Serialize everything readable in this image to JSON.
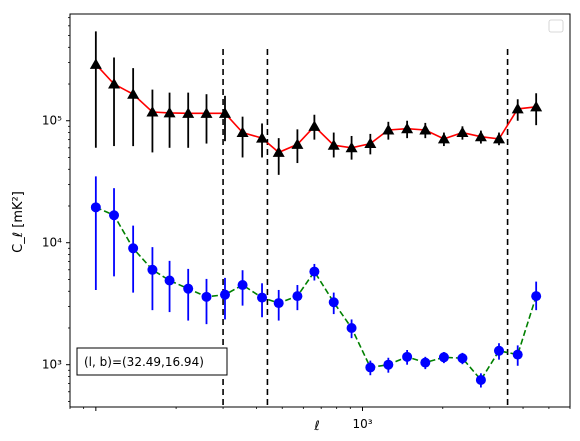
{
  "chart_data": {
    "type": "scatter",
    "xlabel": "ℓ",
    "ylabel": "C_ℓ  [mK²]",
    "x_scale": "log",
    "y_scale": "log",
    "xlim": [
      80,
      6000
    ],
    "ylim": [
      450,
      750000
    ],
    "x_major_ticks": [
      {
        "value": 1000,
        "label": "10³"
      }
    ],
    "y_major_ticks": [
      {
        "value": 1000,
        "label": "10³"
      },
      {
        "value": 10000,
        "label": "10⁴"
      },
      {
        "value": 100000,
        "label": "10⁵"
      }
    ],
    "grid": false,
    "legend": {
      "placement": "top-right",
      "entries": []
    },
    "annotation": "(l, b)=(32.49,16.94)",
    "vlines": [
      300,
      440,
      3500
    ],
    "series": [
      {
        "marker": "triangle",
        "line_style": "solid",
        "line_color": "#ff0000",
        "marker_color": "#000000",
        "errorbar_color": "#000000",
        "points": [
          {
            "x": 100,
            "y": 290000,
            "lo": 60000,
            "hi": 540000
          },
          {
            "x": 117,
            "y": 200000,
            "lo": 62000,
            "hi": 330000
          },
          {
            "x": 138,
            "y": 165000,
            "lo": 62000,
            "hi": 270000
          },
          {
            "x": 163,
            "y": 118000,
            "lo": 55000,
            "hi": 180000
          },
          {
            "x": 189,
            "y": 116000,
            "lo": 60000,
            "hi": 170000
          },
          {
            "x": 222,
            "y": 115000,
            "lo": 60000,
            "hi": 170000
          },
          {
            "x": 260,
            "y": 115000,
            "lo": 65000,
            "hi": 165000
          },
          {
            "x": 305,
            "y": 115000,
            "lo": 68000,
            "hi": 160000
          },
          {
            "x": 355,
            "y": 80000,
            "lo": 50000,
            "hi": 108000
          },
          {
            "x": 420,
            "y": 72000,
            "lo": 50000,
            "hi": 95000
          },
          {
            "x": 485,
            "y": 55000,
            "lo": 36000,
            "hi": 72000
          },
          {
            "x": 570,
            "y": 64000,
            "lo": 45000,
            "hi": 85000
          },
          {
            "x": 660,
            "y": 90000,
            "lo": 70000,
            "hi": 112000
          },
          {
            "x": 780,
            "y": 63000,
            "lo": 50000,
            "hi": 80000
          },
          {
            "x": 910,
            "y": 60000,
            "lo": 48000,
            "hi": 75000
          },
          {
            "x": 1070,
            "y": 65000,
            "lo": 53000,
            "hi": 78000
          },
          {
            "x": 1250,
            "y": 84000,
            "lo": 70000,
            "hi": 98000
          },
          {
            "x": 1470,
            "y": 86000,
            "lo": 72000,
            "hi": 100000
          },
          {
            "x": 1720,
            "y": 84000,
            "lo": 72000,
            "hi": 96000
          },
          {
            "x": 2020,
            "y": 71000,
            "lo": 62000,
            "hi": 80000
          },
          {
            "x": 2370,
            "y": 80000,
            "lo": 70000,
            "hi": 90000
          },
          {
            "x": 2780,
            "y": 74000,
            "lo": 65000,
            "hi": 83000
          },
          {
            "x": 3250,
            "y": 71000,
            "lo": 63000,
            "hi": 80000
          },
          {
            "x": 3820,
            "y": 125000,
            "lo": 100000,
            "hi": 150000
          },
          {
            "x": 4480,
            "y": 130000,
            "lo": 92000,
            "hi": 168000
          }
        ]
      },
      {
        "marker": "circle",
        "line_style": "dashed",
        "line_color": "#008000",
        "marker_color": "#0000ff",
        "errorbar_color": "#0000ff",
        "points": [
          {
            "x": 100,
            "y": 19500,
            "lo": 4100,
            "hi": 35000
          },
          {
            "x": 117,
            "y": 16800,
            "lo": 5300,
            "hi": 28000
          },
          {
            "x": 138,
            "y": 9000,
            "lo": 3900,
            "hi": 13800
          },
          {
            "x": 163,
            "y": 6000,
            "lo": 2800,
            "hi": 9200
          },
          {
            "x": 189,
            "y": 4900,
            "lo": 2700,
            "hi": 7100
          },
          {
            "x": 222,
            "y": 4200,
            "lo": 2300,
            "hi": 6100
          },
          {
            "x": 260,
            "y": 3600,
            "lo": 2150,
            "hi": 5050
          },
          {
            "x": 305,
            "y": 3750,
            "lo": 2350,
            "hi": 5150
          },
          {
            "x": 355,
            "y": 4500,
            "lo": 3050,
            "hi": 5950
          },
          {
            "x": 420,
            "y": 3550,
            "lo": 2450,
            "hi": 4650
          },
          {
            "x": 485,
            "y": 3200,
            "lo": 2300,
            "hi": 4100
          },
          {
            "x": 570,
            "y": 3650,
            "lo": 2800,
            "hi": 4500
          },
          {
            "x": 660,
            "y": 5800,
            "lo": 4900,
            "hi": 6700
          },
          {
            "x": 780,
            "y": 3250,
            "lo": 2600,
            "hi": 3900
          },
          {
            "x": 910,
            "y": 2000,
            "lo": 1650,
            "hi": 2350
          },
          {
            "x": 1070,
            "y": 950,
            "lo": 820,
            "hi": 1080
          },
          {
            "x": 1250,
            "y": 1000,
            "lo": 860,
            "hi": 1140
          },
          {
            "x": 1470,
            "y": 1160,
            "lo": 1000,
            "hi": 1320
          },
          {
            "x": 1720,
            "y": 1040,
            "lo": 920,
            "hi": 1160
          },
          {
            "x": 2020,
            "y": 1150,
            "lo": 1030,
            "hi": 1270
          },
          {
            "x": 2370,
            "y": 1130,
            "lo": 1010,
            "hi": 1250
          },
          {
            "x": 2780,
            "y": 750,
            "lo": 650,
            "hi": 850
          },
          {
            "x": 3250,
            "y": 1300,
            "lo": 1100,
            "hi": 1500
          },
          {
            "x": 3820,
            "y": 1210,
            "lo": 980,
            "hi": 1440
          },
          {
            "x": 4480,
            "y": 3650,
            "lo": 2800,
            "hi": 4800
          }
        ]
      }
    ]
  }
}
